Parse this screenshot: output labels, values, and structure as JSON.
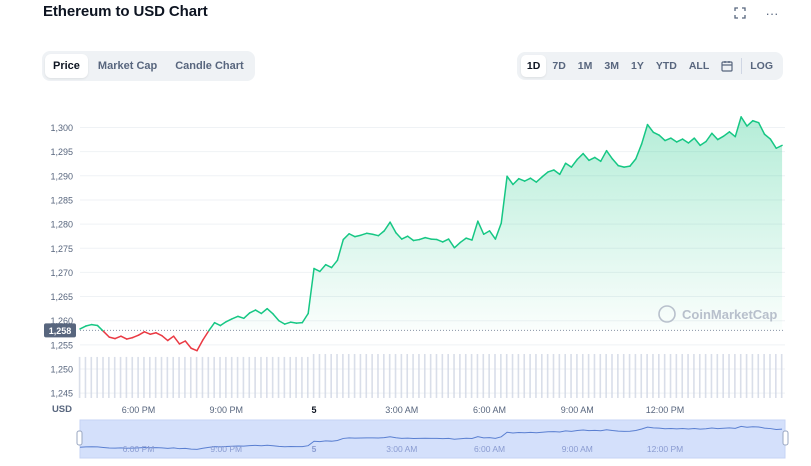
{
  "header": {
    "title": "Ethereum to USD Chart",
    "fullscreen_icon": "fullscreen-icon",
    "more_icon": "more-icon",
    "more_glyph": "···"
  },
  "tabs": [
    {
      "label": "Price",
      "active": true
    },
    {
      "label": "Market Cap",
      "active": false
    },
    {
      "label": "Candle Chart",
      "active": false
    }
  ],
  "ranges": [
    {
      "label": "1D",
      "active": true
    },
    {
      "label": "7D",
      "active": false
    },
    {
      "label": "1M",
      "active": false
    },
    {
      "label": "3M",
      "active": false
    },
    {
      "label": "1Y",
      "active": false
    },
    {
      "label": "YTD",
      "active": false
    },
    {
      "label": "ALL",
      "active": false
    }
  ],
  "calendar_icon": "calendar-icon",
  "log_label": "LOG",
  "watermark": "CoinMarketCap",
  "colors": {
    "up": "#16c784",
    "down": "#ea3943",
    "axis_text": "#58667e",
    "price_tag_bg": "#58667e",
    "navigator_fill": "#d4e0fb",
    "navigator_line": "#5a7fd1"
  },
  "chart_data": {
    "type": "line",
    "ylabel": "USD",
    "yticks": [
      1245,
      1250,
      1255,
      1260,
      1265,
      1270,
      1275,
      1280,
      1285,
      1290,
      1295,
      1300
    ],
    "ytick_labels": [
      "1,245",
      "1,250",
      "1,255",
      "1,260",
      "1,265",
      "1,270",
      "1,275",
      "1,280",
      "1,285",
      "1,290",
      "1,295",
      "1,300"
    ],
    "ylim": [
      1244,
      1303
    ],
    "baseline_price": 1258,
    "baseline_label": "1,258",
    "xlim": [
      0,
      24.1
    ],
    "xticks": [
      {
        "x": 2.0,
        "label": "6:00 PM",
        "bold": false
      },
      {
        "x": 5.0,
        "label": "9:00 PM",
        "bold": false
      },
      {
        "x": 8.0,
        "label": "5",
        "bold": true
      },
      {
        "x": 11.0,
        "label": "3:00 AM",
        "bold": false
      },
      {
        "x": 14.0,
        "label": "6:00 AM",
        "bold": false
      },
      {
        "x": 17.0,
        "label": "9:00 AM",
        "bold": false
      },
      {
        "x": 20.0,
        "label": "12:00 PM",
        "bold": false
      }
    ],
    "x": [
      0,
      0.2,
      0.4,
      0.6,
      0.8,
      1.0,
      1.2,
      1.4,
      1.6,
      1.8,
      2.0,
      2.2,
      2.4,
      2.6,
      2.8,
      3.0,
      3.2,
      3.4,
      3.6,
      3.8,
      4.0,
      4.2,
      4.4,
      4.6,
      4.8,
      5.0,
      5.2,
      5.4,
      5.6,
      5.8,
      6.0,
      6.2,
      6.4,
      6.6,
      6.8,
      7.0,
      7.2,
      7.4,
      7.6,
      7.8,
      8.0,
      8.2,
      8.4,
      8.6,
      8.8,
      9.0,
      9.2,
      9.4,
      9.6,
      9.8,
      10.0,
      10.2,
      10.4,
      10.6,
      10.8,
      11.0,
      11.2,
      11.4,
      11.6,
      11.8,
      12.0,
      12.2,
      12.4,
      12.6,
      12.8,
      13.0,
      13.2,
      13.4,
      13.6,
      13.8,
      14.0,
      14.2,
      14.4,
      14.6,
      14.8,
      15.0,
      15.2,
      15.4,
      15.6,
      15.8,
      16.0,
      16.2,
      16.4,
      16.6,
      16.8,
      17.0,
      17.2,
      17.4,
      17.6,
      17.8,
      18.0,
      18.2,
      18.4,
      18.6,
      18.8,
      19.0,
      19.2,
      19.4,
      19.6,
      19.8,
      20.0,
      20.2,
      20.4,
      20.6,
      20.8,
      21.0,
      21.2,
      21.4,
      21.6,
      21.8,
      22.0,
      22.2,
      22.4,
      22.6,
      22.8,
      23.0,
      23.2,
      23.4,
      23.6,
      23.8,
      24.0
    ],
    "y": [
      1258.3,
      1258.9,
      1259.2,
      1259.0,
      1257.8,
      1256.6,
      1256.3,
      1256.8,
      1256.2,
      1256.5,
      1257.0,
      1257.7,
      1257.2,
      1257.5,
      1256.9,
      1255.9,
      1256.8,
      1255.2,
      1255.8,
      1254.3,
      1253.8,
      1256.0,
      1257.9,
      1259.6,
      1259.0,
      1259.8,
      1260.4,
      1260.9,
      1260.5,
      1261.6,
      1262.2,
      1261.5,
      1262.5,
      1261.4,
      1260.0,
      1259.3,
      1259.7,
      1259.5,
      1259.6,
      1261.5,
      1270.8,
      1270.2,
      1271.6,
      1271.0,
      1272.5,
      1276.8,
      1278.0,
      1277.4,
      1277.7,
      1278.1,
      1277.9,
      1277.6,
      1278.6,
      1280.4,
      1278.2,
      1276.9,
      1277.5,
      1276.6,
      1276.8,
      1277.2,
      1276.9,
      1276.8,
      1276.3,
      1276.9,
      1275.1,
      1276.2,
      1277.1,
      1276.7,
      1280.6,
      1277.9,
      1278.6,
      1276.9,
      1280.2,
      1289.9,
      1288.2,
      1289.4,
      1288.9,
      1289.5,
      1288.7,
      1289.8,
      1290.8,
      1291.2,
      1290.3,
      1292.6,
      1291.8,
      1293.4,
      1294.6,
      1293.2,
      1293.8,
      1293.0,
      1295.2,
      1293.5,
      1292.1,
      1291.8,
      1292.0,
      1293.5,
      1296.6,
      1300.6,
      1299.0,
      1298.4,
      1297.3,
      1297.8,
      1297.0,
      1297.6,
      1296.8,
      1297.8,
      1296.3,
      1297.1,
      1298.8,
      1297.5,
      1298.2,
      1299.1,
      1298.1,
      1302.2,
      1300.3,
      1301.4,
      1301.0,
      1298.6,
      1297.6,
      1295.7,
      1296.3
    ],
    "volume": [
      14,
      14,
      14,
      14,
      14,
      14,
      14,
      14,
      14,
      14,
      14,
      14,
      14,
      14,
      14,
      14,
      14,
      14,
      14,
      14,
      14,
      14,
      14,
      14,
      14,
      14,
      14,
      14,
      14,
      14,
      14,
      14,
      14,
      14,
      14,
      14,
      14,
      14,
      14,
      14,
      15,
      15,
      15,
      15,
      15,
      15,
      15,
      15,
      15,
      15,
      15,
      15,
      15,
      15,
      15,
      15,
      15,
      15,
      15,
      15,
      15,
      15,
      15,
      15,
      15,
      15,
      15,
      15,
      15,
      15,
      15,
      15,
      15,
      15,
      15,
      15,
      15,
      15,
      15,
      15,
      15,
      15,
      15,
      15,
      15,
      15,
      15,
      15,
      15,
      15,
      15,
      15,
      15,
      15,
      15,
      15,
      15,
      15,
      15,
      15,
      15,
      15,
      15,
      15,
      15,
      15,
      15,
      15,
      15,
      15,
      15,
      15,
      15,
      15,
      15,
      15,
      15,
      15,
      15,
      15,
      15
    ]
  }
}
